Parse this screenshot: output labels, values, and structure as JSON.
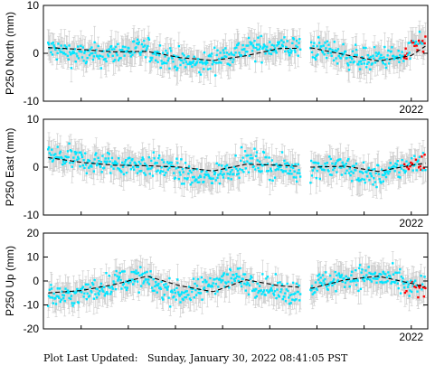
{
  "footer": {
    "label": "Plot Last Updated:",
    "value": "Sunday, January 30, 2022 08:41:05 PST"
  },
  "colors": {
    "points": "#00e5ff",
    "recent_points": "#ff0000",
    "error_bars": "#c8c8c8",
    "fit_line": "#000000"
  },
  "chart_data": [
    {
      "type": "scatter",
      "ylabel": "P250 North (mm)",
      "ylim": [
        -10,
        10
      ],
      "yticks": [
        -10,
        0,
        10
      ],
      "xticks": [
        2022
      ],
      "xrange": [
        2014.2,
        2022.35
      ],
      "gap": [
        2019.65,
        2019.85
      ],
      "recent_start": 2021.85,
      "series": [
        {
          "name": "",
          "description": "Daily GPS position (cyan), last weeks in red, grey error bars",
          "x": [
            2014.3,
            2014.7,
            2015.1,
            2015.5,
            2015.9,
            2016.3,
            2016.7,
            2017.1,
            2017.5,
            2017.9,
            2018.3,
            2018.7,
            2019.1,
            2019.5,
            2019.9,
            2020.3,
            2020.7,
            2021.1,
            2021.5,
            2021.9,
            2022.1
          ],
          "y": [
            1.0,
            0.2,
            -0.5,
            -0.3,
            0.5,
            0.8,
            -0.4,
            -1.5,
            -2.5,
            -1.0,
            0.5,
            1.0,
            1.5,
            1.2,
            1.0,
            0.5,
            -0.8,
            -1.5,
            -0.8,
            -1.0,
            2.0
          ]
        },
        {
          "name": "",
          "description": "Seasonal fit (dashed black)",
          "x": [
            2014.3,
            2015.0,
            2015.7,
            2016.4,
            2017.1,
            2017.8,
            2018.5,
            2019.2,
            2019.9,
            2020.6,
            2021.3,
            2022.0,
            2022.3
          ],
          "y": [
            1.2,
            0.8,
            0.3,
            0.4,
            -0.9,
            -1.5,
            -0.5,
            1.0,
            1.1,
            -0.3,
            -1.6,
            -0.5,
            1.5
          ]
        }
      ]
    },
    {
      "type": "scatter",
      "ylabel": "P250 East (mm)",
      "ylim": [
        -10,
        10
      ],
      "yticks": [
        -10,
        0,
        10
      ],
      "xticks": [
        2022
      ],
      "xrange": [
        2014.2,
        2022.35
      ],
      "gap": [
        2019.65,
        2019.85
      ],
      "recent_start": 2021.85,
      "series": [
        {
          "name": "",
          "description": "Daily GPS position (cyan), last weeks in red, grey error bars",
          "x": [
            2014.3,
            2014.7,
            2015.1,
            2015.5,
            2015.9,
            2016.3,
            2016.7,
            2017.1,
            2017.5,
            2017.9,
            2018.3,
            2018.7,
            2019.1,
            2019.5,
            2019.9,
            2020.3,
            2020.7,
            2021.1,
            2021.5,
            2021.9,
            2022.1
          ],
          "y": [
            2.5,
            1.8,
            1.2,
            0.8,
            0.6,
            0.5,
            0.2,
            -1.0,
            -2.5,
            -1.5,
            0.5,
            1.2,
            0.0,
            -0.5,
            -0.5,
            0.5,
            -0.5,
            -2.0,
            -1.5,
            0.5,
            1.0
          ]
        },
        {
          "name": "",
          "description": "Seasonal fit (dashed black)",
          "x": [
            2014.3,
            2015.0,
            2015.7,
            2016.4,
            2017.1,
            2017.8,
            2018.5,
            2019.2,
            2019.9,
            2020.6,
            2021.3,
            2022.0,
            2022.3
          ],
          "y": [
            2.0,
            1.0,
            0.4,
            0.3,
            0.0,
            -0.8,
            0.6,
            0.4,
            0.0,
            0.2,
            -0.9,
            0.4,
            0.8
          ]
        }
      ]
    },
    {
      "type": "scatter",
      "ylabel": "P250 Up (mm)",
      "ylim": [
        -20,
        20
      ],
      "yticks": [
        -20,
        -10,
        0,
        10,
        20
      ],
      "xticks": [
        2022
      ],
      "xrange": [
        2014.2,
        2022.35
      ],
      "gap": [
        2019.65,
        2019.85
      ],
      "recent_start": 2021.85,
      "series": [
        {
          "name": "",
          "description": "Daily GPS position (cyan), last weeks in red, grey error bars",
          "x": [
            2014.3,
            2014.7,
            2015.1,
            2015.5,
            2015.9,
            2016.3,
            2016.7,
            2017.1,
            2017.5,
            2017.9,
            2018.3,
            2018.7,
            2019.1,
            2019.5,
            2019.9,
            2020.3,
            2020.7,
            2021.1,
            2021.5,
            2021.9,
            2022.1
          ],
          "y": [
            -6.0,
            -6.5,
            -5.0,
            -2.0,
            0.5,
            1.0,
            -3.0,
            -5.5,
            -4.0,
            0.5,
            1.5,
            -1.5,
            -4.0,
            -5.0,
            -2.0,
            0.0,
            1.5,
            2.0,
            1.0,
            -2.0,
            -2.5
          ]
        },
        {
          "name": "",
          "description": "Seasonal fit (dashed black)",
          "x": [
            2014.3,
            2015.0,
            2015.7,
            2016.4,
            2017.1,
            2017.8,
            2018.5,
            2019.2,
            2019.9,
            2020.6,
            2021.3,
            2022.0,
            2022.3
          ],
          "y": [
            -5.0,
            -4.0,
            -1.5,
            2.0,
            -2.0,
            -4.5,
            0.5,
            -2.0,
            -3.0,
            0.5,
            2.0,
            -1.0,
            -2.5
          ]
        }
      ]
    }
  ]
}
